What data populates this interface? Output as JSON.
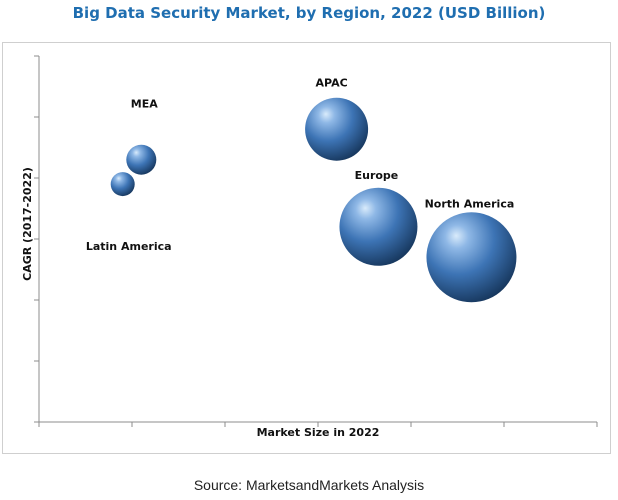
{
  "chart_data": {
    "type": "scatter",
    "title": "Big Data Security Market, by Region, 2022 (USD Billion)",
    "xlabel": "Market Size in 2022",
    "ylabel": "CAGR (2017-2022)",
    "xlim": [
      0,
      12
    ],
    "ylim": [
      0,
      6
    ],
    "x_ticks": 6,
    "y_ticks": 6,
    "grid": false,
    "bubble_color": "#3d74b5",
    "points": [
      {
        "label": "MEA",
        "x": 2.2,
        "y": 4.3,
        "size": 1.0
      },
      {
        "label": "Latin America",
        "x": 1.8,
        "y": 3.9,
        "size": 0.8
      },
      {
        "label": "APAC",
        "x": 6.4,
        "y": 4.8,
        "size": 2.1
      },
      {
        "label": "Europe",
        "x": 7.3,
        "y": 3.2,
        "size": 2.6
      },
      {
        "label": "North America",
        "x": 9.3,
        "y": 2.7,
        "size": 3.0
      }
    ]
  },
  "footer": {
    "source": "Source: MarketsandMarkets Analysis"
  }
}
